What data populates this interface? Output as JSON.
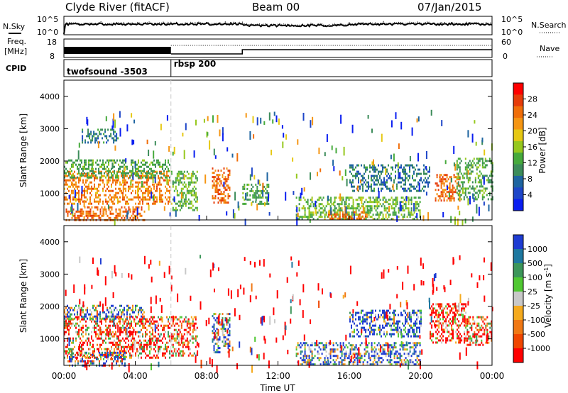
{
  "header": {
    "station": "Clyde River (fitACF)",
    "beam": "Beam 00",
    "date": "07/Jan/2015"
  },
  "labels": {
    "nsky": "N.Sky",
    "nsearch": "N.Search",
    "freq_line1": "Freq.",
    "freq_line2": "[MHz]",
    "nave": "Nave",
    "cpid": "CPID",
    "power_axis": "Power [dB]",
    "velocity_axis_base": "Velocity  [m s",
    "velocity_axis_exp": "-1",
    "velocity_axis_end": "]"
  },
  "panels": {
    "noise": {
      "left_ticks": [
        "10^5",
        "10^0"
      ],
      "right_ticks": [
        "10^5",
        "10^0"
      ]
    },
    "freq": {
      "left_ticks": [
        "18",
        "8"
      ],
      "right_ticks": [
        "60",
        "0"
      ]
    },
    "cpid": {
      "programs": [
        {
          "label": "twofsound -3503",
          "start_hour": 0
        },
        {
          "label": "rbsp 200",
          "start_hour": 6
        }
      ]
    }
  },
  "colors": {
    "power_scale": [
      "#0a1ef0",
      "#1e46c8",
      "#1e64a0",
      "#3c8c5a",
      "#46aa3c",
      "#96c81e",
      "#e6c814",
      "#f59614",
      "#f06e0a",
      "#e63c0a",
      "#ff0000"
    ],
    "velocity_scale": [
      "#ff0000",
      "#f04600",
      "#f07814",
      "#f5aa1e",
      "#c8c8c8",
      "#50c832",
      "#3c965a",
      "#1e78a0",
      "#1e3cd2"
    ]
  },
  "chart_data": [
    {
      "type": "heatmap",
      "name": "power",
      "xlabel": "Time UT",
      "ylabel": "Slant Range [km]",
      "x_range_hours": [
        0,
        24
      ],
      "x_ticks": [
        "00:00",
        "04:00",
        "08:00",
        "12:00",
        "16:00",
        "20:00",
        "00:00"
      ],
      "y_range_km": [
        180,
        4500
      ],
      "y_ticks": [
        1000,
        2000,
        3000,
        4000
      ],
      "colorbar_label": "Power [dB]",
      "colorbar_ticks": [
        4,
        8,
        12,
        16,
        20,
        24,
        28
      ],
      "colorbar_range": [
        0,
        32
      ],
      "regions": [
        {
          "t0": 0.0,
          "t1": 5.9,
          "r0": 700,
          "r1": 1700,
          "value": 24
        },
        {
          "t0": 0.1,
          "t1": 4.5,
          "r0": 200,
          "r1": 600,
          "value": 26
        },
        {
          "t0": 0.0,
          "t1": 5.9,
          "r0": 1500,
          "r1": 2050,
          "value": 12
        },
        {
          "t0": 1.0,
          "t1": 3.0,
          "r0": 2600,
          "r1": 3000,
          "value": 8
        },
        {
          "t0": 6.0,
          "t1": 7.5,
          "r0": 500,
          "r1": 1700,
          "value": 14
        },
        {
          "t0": 8.3,
          "t1": 9.3,
          "r0": 700,
          "r1": 1800,
          "value": 26
        },
        {
          "t0": 10.0,
          "t1": 11.5,
          "r0": 700,
          "r1": 1300,
          "value": 12
        },
        {
          "t0": 13.0,
          "t1": 20.0,
          "r0": 200,
          "r1": 900,
          "value": 14
        },
        {
          "t0": 14.8,
          "t1": 17.0,
          "r0": 200,
          "r1": 450,
          "value": 26
        },
        {
          "t0": 16.0,
          "t1": 20.5,
          "r0": 1100,
          "r1": 1900,
          "value": 8
        },
        {
          "t0": 20.8,
          "t1": 22.2,
          "r0": 800,
          "r1": 1600,
          "value": 26
        },
        {
          "t0": 22.0,
          "t1": 24.0,
          "r0": 800,
          "r1": 2100,
          "value": 12
        }
      ]
    },
    {
      "type": "heatmap",
      "name": "velocity",
      "xlabel": "Time UT",
      "ylabel": "Slant Range [km]",
      "x_range_hours": [
        0,
        24
      ],
      "x_ticks": [
        "00:00",
        "04:00",
        "08:00",
        "12:00",
        "16:00",
        "20:00",
        "00:00"
      ],
      "y_range_km": [
        180,
        4500
      ],
      "y_ticks": [
        1000,
        2000,
        3000,
        4000
      ],
      "colorbar_label": "Velocity [m s-1]",
      "colorbar_ticks": [
        "1000",
        "500",
        "100",
        "25",
        "-25",
        "-100",
        "-500",
        "-1000"
      ],
      "regions": [
        {
          "t0": 0.0,
          "t1": 5.9,
          "r0": 400,
          "r1": 1700,
          "value": 2
        },
        {
          "t0": 0.2,
          "t1": 3.5,
          "r0": 200,
          "r1": 600,
          "value": -1
        },
        {
          "t0": 0.0,
          "t1": 4.5,
          "r0": 1600,
          "r1": 2050,
          "value": -2
        },
        {
          "t0": 6.0,
          "t1": 7.5,
          "r0": 500,
          "r1": 1700,
          "value": 2
        },
        {
          "t0": 8.3,
          "t1": 9.3,
          "r0": 600,
          "r1": 1800,
          "value": -2
        },
        {
          "t0": 13.0,
          "t1": 20.0,
          "r0": 200,
          "r1": 900,
          "value": -2
        },
        {
          "t0": 16.0,
          "t1": 20.0,
          "r0": 1100,
          "r1": 1900,
          "value": -3
        },
        {
          "t0": 20.5,
          "t1": 22.5,
          "r0": 900,
          "r1": 2100,
          "value": 3
        },
        {
          "t0": 22.5,
          "t1": 24.0,
          "r0": 800,
          "r1": 1700,
          "value": 2
        }
      ]
    }
  ]
}
